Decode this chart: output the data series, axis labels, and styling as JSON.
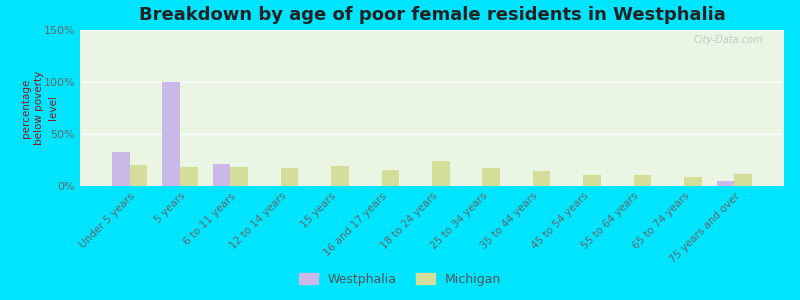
{
  "title": "Breakdown by age of poor female residents in Westphalia",
  "ylabel": "percentage\nbelow poverty\nlevel",
  "categories": [
    "Under 5 years",
    "5 years",
    "6 to 11 years",
    "12 to 14 years",
    "15 years",
    "16 and 17 years",
    "18 to 24 years",
    "25 to 34 years",
    "35 to 44 years",
    "45 to 54 years",
    "55 to 64 years",
    "65 to 74 years",
    "75 years and over"
  ],
  "westphalia": [
    33,
    100,
    21,
    0,
    0,
    0,
    0,
    0,
    0,
    0,
    0,
    0,
    5
  ],
  "michigan": [
    20,
    18,
    18,
    17,
    19,
    15,
    24,
    17,
    14,
    11,
    11,
    9,
    12
  ],
  "westphalia_color": "#c9b8e8",
  "michigan_color": "#d4de9a",
  "ylim": [
    0,
    150
  ],
  "yticks": [
    0,
    50,
    100,
    150
  ],
  "ytick_labels": [
    "0%",
    "50%",
    "100%",
    "150%"
  ],
  "bar_width": 0.35,
  "title_fontsize": 13,
  "axis_bg_color": "#eaf5e4",
  "outer_bg_color": "#00e5ff",
  "watermark": "City-Data.com"
}
